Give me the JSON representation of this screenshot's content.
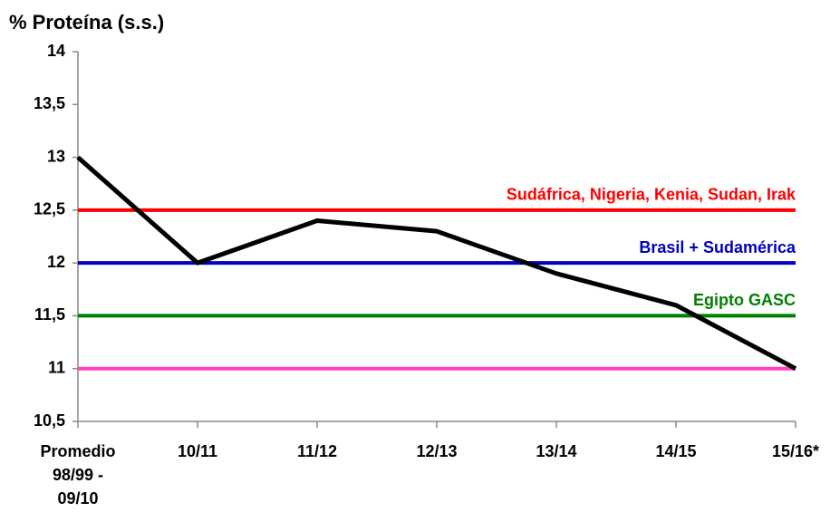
{
  "chart_data": {
    "type": "line",
    "title": "% Proteína (s.s.)",
    "categories": [
      "Promedio 98/99 - 09/10",
      "10/11",
      "11/12",
      "12/13",
      "13/14",
      "14/15",
      "15/16*"
    ],
    "series": [
      {
        "color": "#000000",
        "values": [
          13,
          12.0,
          12.4,
          12.3,
          11.9,
          11.6,
          11.0
        ]
      }
    ],
    "reference_lines": [
      {
        "label": "Sudáfrica, Nigeria, Kenia, Sudan, Irak",
        "color": "#ff0000",
        "value": 12.5
      },
      {
        "label": "Brasil + Sudamérica",
        "color": "#0000c0",
        "value": 12
      },
      {
        "label": "Egipto GASC",
        "color": "#008000",
        "value": 11.5
      },
      {
        "color": "#ff40c0",
        "value": 11
      }
    ],
    "ylim": [
      10.5,
      14
    ],
    "yticks": [
      {
        "value": 10.5,
        "label": "10,5"
      },
      11,
      {
        "value": 11.5,
        "label": "11,5"
      },
      12,
      {
        "value": 12.5,
        "label": "12,5"
      },
      13,
      {
        "value": 13.5,
        "label": "13,5"
      },
      14
    ],
    "grid": false
  }
}
